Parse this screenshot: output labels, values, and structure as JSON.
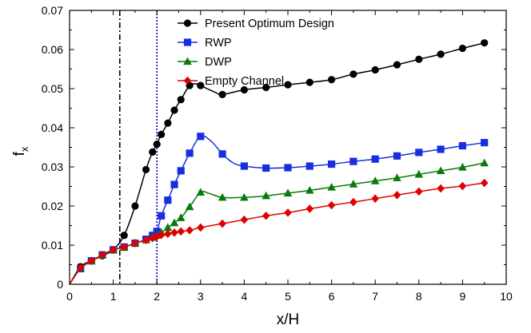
{
  "chart_data": {
    "type": "line",
    "title": "",
    "xlabel": "x/H",
    "ylabel_main": "f",
    "ylabel_sub": "x",
    "xlim": [
      0,
      10
    ],
    "ylim": [
      0,
      0.07
    ],
    "xticks": [
      "0",
      "1",
      "2",
      "3",
      "4",
      "5",
      "6",
      "7",
      "8",
      "9",
      "10"
    ],
    "yticks": [
      "0",
      "0.01",
      "0.02",
      "0.03",
      "0.04",
      "0.05",
      "0.06",
      "0.07"
    ],
    "grid": false,
    "legend_position": "top-center",
    "vertical_lines": [
      {
        "x": 1.15,
        "style": "dash-dot",
        "color": "#000000"
      },
      {
        "x": 2.0,
        "style": "dotted",
        "color": "#0000cc"
      }
    ],
    "series": [
      {
        "name": "Present Optimum Design",
        "color": "#000000",
        "marker": "circle",
        "x": [
          0.25,
          0.5,
          0.75,
          1.0,
          1.25,
          1.5,
          1.75,
          1.9,
          2.0,
          2.1,
          2.25,
          2.4,
          2.55,
          2.75,
          3.0,
          3.5,
          4.0,
          4.5,
          5.0,
          5.5,
          6.0,
          6.5,
          7.0,
          7.5,
          8.0,
          8.5,
          9.0,
          9.5
        ],
        "y": [
          0.0045,
          0.006,
          0.0073,
          0.0088,
          0.0125,
          0.02,
          0.0293,
          0.0338,
          0.0358,
          0.0383,
          0.0412,
          0.0445,
          0.0472,
          0.0508,
          0.0508,
          0.0485,
          0.0497,
          0.0503,
          0.051,
          0.0516,
          0.0523,
          0.0537,
          0.0548,
          0.0561,
          0.0575,
          0.0588,
          0.0603,
          0.0617
        ],
        "curve_x": [
          0,
          0.25,
          0.5,
          0.75,
          1.0,
          1.25,
          1.5,
          1.75,
          1.9,
          2.0,
          2.1,
          2.25,
          2.4,
          2.55,
          2.75,
          2.9,
          3.0,
          3.15,
          3.35,
          3.5,
          4.0,
          4.5,
          5.0,
          5.5,
          6.0,
          6.5,
          7.0,
          7.5,
          8.0,
          8.5,
          9.0,
          9.5
        ],
        "curve_y": [
          0,
          0.0045,
          0.006,
          0.0073,
          0.0088,
          0.0125,
          0.02,
          0.0293,
          0.0338,
          0.0358,
          0.0383,
          0.0412,
          0.0445,
          0.0472,
          0.0508,
          0.0512,
          0.0508,
          0.05,
          0.049,
          0.0485,
          0.0497,
          0.0503,
          0.051,
          0.0516,
          0.0523,
          0.0537,
          0.0548,
          0.0561,
          0.0575,
          0.0588,
          0.0603,
          0.0617
        ]
      },
      {
        "name": "RWP",
        "color": "#1a2ee0",
        "marker": "square",
        "x": [
          0.25,
          0.5,
          0.75,
          1.0,
          1.25,
          1.5,
          1.75,
          1.9,
          2.0,
          2.1,
          2.25,
          2.4,
          2.55,
          2.75,
          3.0,
          3.5,
          4.0,
          4.5,
          5.0,
          5.5,
          6.0,
          6.5,
          7.0,
          7.5,
          8.0,
          8.5,
          9.0,
          9.5
        ],
        "y": [
          0.004,
          0.006,
          0.0075,
          0.0088,
          0.0095,
          0.0105,
          0.0115,
          0.0125,
          0.0135,
          0.0175,
          0.0215,
          0.0255,
          0.029,
          0.0335,
          0.0378,
          0.0333,
          0.0302,
          0.0297,
          0.0298,
          0.0302,
          0.0307,
          0.0314,
          0.032,
          0.0328,
          0.0337,
          0.0345,
          0.0354,
          0.0362
        ],
        "curve_x": [
          0,
          0.25,
          0.5,
          0.75,
          1.0,
          1.25,
          1.5,
          1.75,
          1.9,
          2.0,
          2.1,
          2.25,
          2.4,
          2.55,
          2.75,
          3.0,
          3.25,
          3.5,
          3.75,
          4.0,
          4.5,
          5.0,
          5.5,
          6.0,
          6.5,
          7.0,
          7.5,
          8.0,
          8.5,
          9.0,
          9.5
        ],
        "curve_y": [
          0,
          0.004,
          0.006,
          0.0075,
          0.0088,
          0.0095,
          0.0105,
          0.0115,
          0.0125,
          0.0135,
          0.0175,
          0.0215,
          0.0255,
          0.029,
          0.0335,
          0.0378,
          0.0365,
          0.0333,
          0.031,
          0.0302,
          0.0297,
          0.0298,
          0.0302,
          0.0307,
          0.0314,
          0.032,
          0.0328,
          0.0337,
          0.0345,
          0.0354,
          0.0362
        ]
      },
      {
        "name": "DWP",
        "color": "#0a7a0a",
        "marker": "triangle",
        "x": [
          0.25,
          0.5,
          0.75,
          1.0,
          1.25,
          1.5,
          1.75,
          1.9,
          2.0,
          2.1,
          2.25,
          2.4,
          2.55,
          2.75,
          3.0,
          3.5,
          4.0,
          4.5,
          5.0,
          5.5,
          6.0,
          6.5,
          7.0,
          7.5,
          8.0,
          8.5,
          9.0,
          9.5
        ],
        "y": [
          0.0042,
          0.006,
          0.0075,
          0.0088,
          0.0095,
          0.0105,
          0.0113,
          0.012,
          0.0125,
          0.0132,
          0.0145,
          0.0157,
          0.017,
          0.0198,
          0.0235,
          0.0222,
          0.0222,
          0.0226,
          0.0233,
          0.024,
          0.0248,
          0.0256,
          0.0264,
          0.0272,
          0.0281,
          0.029,
          0.0299,
          0.031
        ],
        "curve_x": [
          0,
          0.25,
          0.5,
          0.75,
          1.0,
          1.25,
          1.5,
          1.75,
          1.9,
          2.0,
          2.1,
          2.25,
          2.4,
          2.55,
          2.75,
          3.0,
          3.2,
          3.5,
          4.0,
          4.5,
          5.0,
          5.5,
          6.0,
          6.5,
          7.0,
          7.5,
          8.0,
          8.5,
          9.0,
          9.5
        ],
        "curve_y": [
          0,
          0.0042,
          0.006,
          0.0075,
          0.0088,
          0.0095,
          0.0105,
          0.0113,
          0.012,
          0.0125,
          0.0132,
          0.0145,
          0.0157,
          0.017,
          0.0198,
          0.0235,
          0.0232,
          0.0222,
          0.0222,
          0.0226,
          0.0233,
          0.024,
          0.0248,
          0.0256,
          0.0264,
          0.0272,
          0.0281,
          0.029,
          0.0299,
          0.031
        ]
      },
      {
        "name": "Empty Channel",
        "color": "#e00000",
        "marker": "diamond",
        "x": [
          0.25,
          0.5,
          0.75,
          1.0,
          1.25,
          1.5,
          1.75,
          1.9,
          2.0,
          2.1,
          2.25,
          2.4,
          2.55,
          2.75,
          3.0,
          3.5,
          4.0,
          4.5,
          5.0,
          5.5,
          6.0,
          6.5,
          7.0,
          7.5,
          8.0,
          8.5,
          9.0,
          9.5
        ],
        "y": [
          0.0042,
          0.006,
          0.0075,
          0.0088,
          0.0095,
          0.0105,
          0.0113,
          0.0118,
          0.0122,
          0.0126,
          0.0129,
          0.0132,
          0.0135,
          0.0138,
          0.0145,
          0.0155,
          0.0165,
          0.0175,
          0.0183,
          0.0193,
          0.0202,
          0.021,
          0.0219,
          0.0228,
          0.0237,
          0.0245,
          0.0251,
          0.0259
        ],
        "curve_x": [
          0,
          0.25,
          0.5,
          0.75,
          1.0,
          1.25,
          1.5,
          1.75,
          1.9,
          2.0,
          2.1,
          2.25,
          2.4,
          2.55,
          2.75,
          3.0,
          3.5,
          4.0,
          4.5,
          5.0,
          5.5,
          6.0,
          6.5,
          7.0,
          7.5,
          8.0,
          8.5,
          9.0,
          9.5
        ],
        "curve_y": [
          0,
          0.0042,
          0.006,
          0.0075,
          0.0088,
          0.0095,
          0.0105,
          0.0113,
          0.0118,
          0.0122,
          0.0126,
          0.0129,
          0.0132,
          0.0135,
          0.0138,
          0.0145,
          0.0155,
          0.0165,
          0.0175,
          0.0183,
          0.0193,
          0.0202,
          0.021,
          0.0219,
          0.0228,
          0.0237,
          0.0245,
          0.0251,
          0.0259
        ]
      }
    ]
  }
}
